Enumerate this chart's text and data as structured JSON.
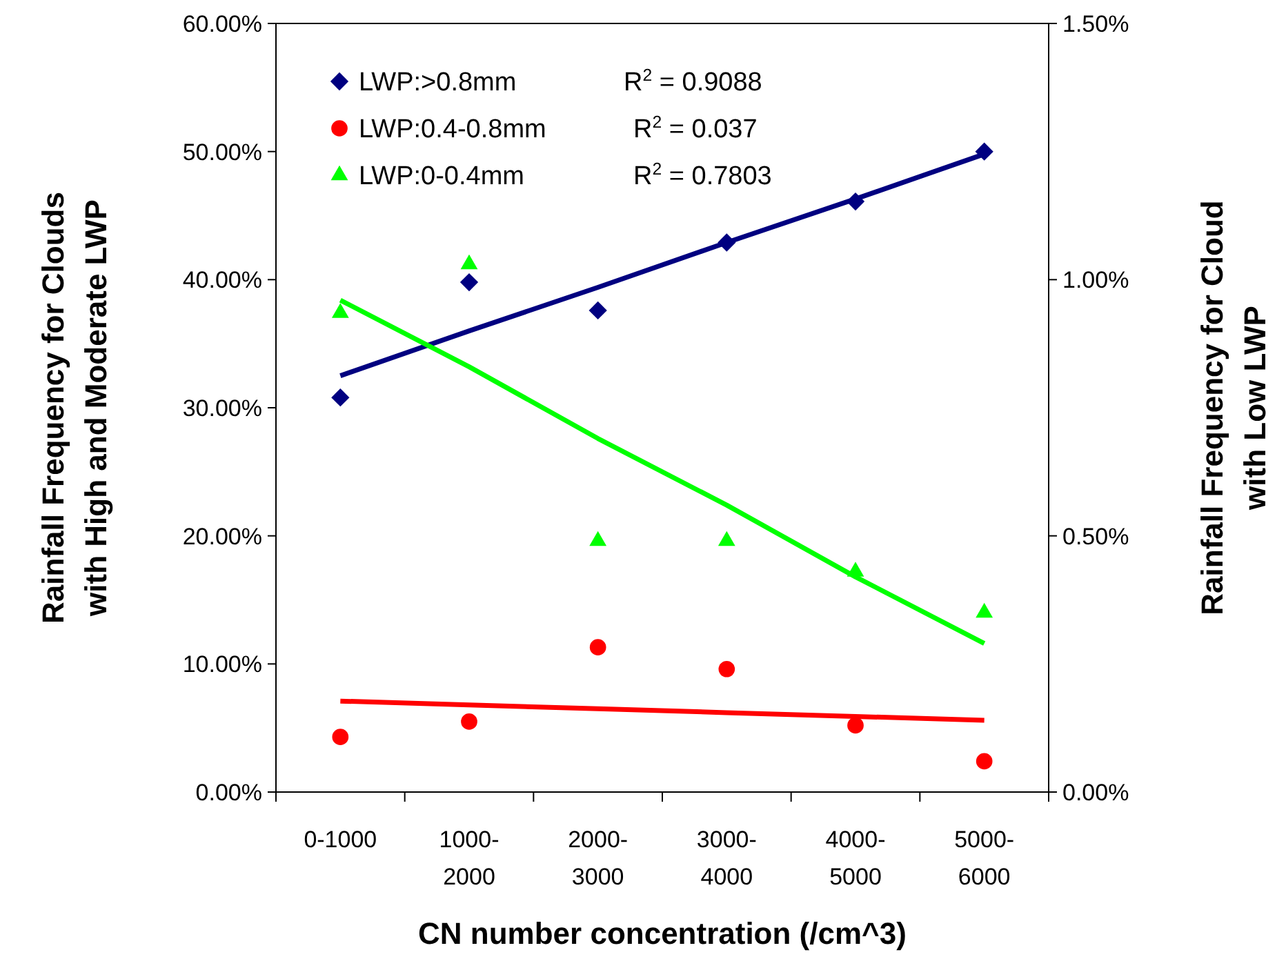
{
  "chart_data": {
    "type": "scatter",
    "xlabel": "CN number concentration (/cm^3)",
    "ylabel": "Rainfall Frequency for Clouds with High and Moderate LWP",
    "y2label": "Rainfall Frequency for Cloud with Low LWP",
    "categories": [
      "0-1000",
      "1000- 2000",
      "2000- 3000",
      "3000- 4000",
      "4000- 5000",
      "5000- 6000"
    ],
    "ylim": [
      0,
      60
    ],
    "yticks": [
      {
        "value": 0,
        "label": "0.00%"
      },
      {
        "value": 10,
        "label": "10.00%"
      },
      {
        "value": 20,
        "label": "20.00%"
      },
      {
        "value": 30,
        "label": "30.00%"
      },
      {
        "value": 40,
        "label": "40.00%"
      },
      {
        "value": 50,
        "label": "50.00%"
      },
      {
        "value": 60,
        "label": "60.00%"
      }
    ],
    "y2lim": [
      0,
      1.5
    ],
    "y2ticks": [
      {
        "value": 0,
        "label": "0.00%"
      },
      {
        "value": 0.5,
        "label": "0.50%"
      },
      {
        "value": 1,
        "label": "1.00%"
      },
      {
        "value": 1.5,
        "label": "1.50%"
      }
    ],
    "grid": false,
    "legend": "top left",
    "series": [
      {
        "name": "LWP:>0.8mm",
        "marker": "diamond",
        "color": "#000080",
        "values": [
          30.8,
          39.8,
          37.6,
          42.9,
          46.1,
          50.0
        ]
      },
      {
        "name": "LWP:0.4-0.8mm",
        "marker": "circle",
        "color": "#ff0000",
        "values": [
          4.3,
          5.5,
          11.3,
          9.6,
          5.2,
          2.4
        ]
      },
      {
        "name": "LWP:0-0.4mm",
        "marker": "triangle",
        "color": "#00ff00",
        "axis": "y2",
        "values": [
          0.935,
          1.03,
          0.49,
          0.49,
          0.43,
          0.35
        ]
      },
      {
        "type": "line",
        "marker": "none",
        "line_style": "solid",
        "color": "#000080",
        "values": [
          32.5,
          36.0,
          39.4,
          42.9,
          46.3,
          49.8
        ]
      },
      {
        "type": "line",
        "marker": "none",
        "line_style": "solid",
        "color": "#ff0000",
        "values": [
          7.1,
          6.8,
          6.5,
          6.2,
          5.9,
          5.6
        ]
      },
      {
        "type": "line",
        "marker": "none",
        "line_style": "solid",
        "color": "#00ff00",
        "axis": "y2",
        "values": [
          0.96,
          0.83,
          0.69,
          0.56,
          0.42,
          0.29
        ]
      }
    ],
    "annotations": [
      "R$^{2}$ = 0.9088",
      "R$^{2}$ = 0.037",
      "R$^{2}$ = 0.7803"
    ]
  }
}
